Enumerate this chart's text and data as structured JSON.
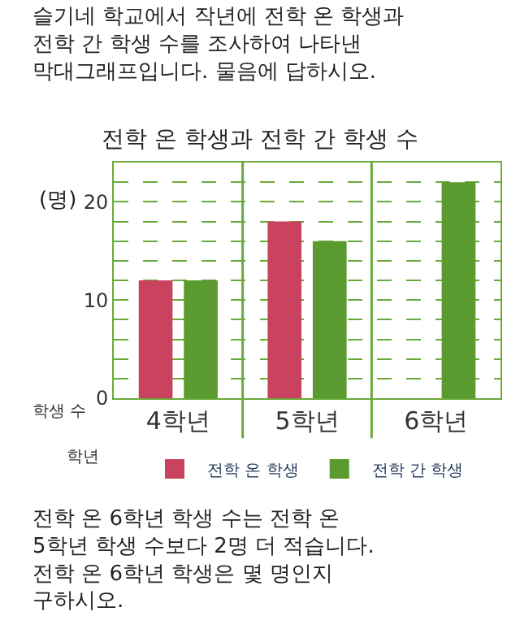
{
  "chart_data": {
    "type": "bar",
    "title": "전학 온 학생과 전학 간 학생 수",
    "xlabel": "학년",
    "ylabel": "학생 수",
    "categories": [
      "4학년",
      "5학년",
      "6학년"
    ],
    "series": [
      {
        "name": "전학 온 학생",
        "color": "#c9435f",
        "values": [
          12,
          18,
          null
        ]
      },
      {
        "name": "전학 간 학생",
        "color": "#5a9a2e",
        "values": [
          12,
          16,
          22
        ]
      }
    ],
    "ylim": [
      0,
      24
    ],
    "yticks": [
      0,
      {
        "value": 2,
        "label": null
      },
      {
        "value": 4,
        "label": null
      },
      {
        "value": 6,
        "label": null
      },
      {
        "value": 8,
        "label": null
      },
      10,
      {
        "value": 12,
        "label": null
      },
      {
        "value": 14,
        "label": null
      },
      {
        "value": 16,
        "label": null
      },
      {
        "value": 18,
        "label": null
      },
      20,
      {
        "value": 22,
        "label": null
      }
    ],
    "grid": "y",
    "legend": "bottom",
    "annotations": [
      "슬기네 학교에서 작년에 전학 온 학생과 전학 간 학생 수를 조사하여 나타낸 막대그래프입니다. 물음에 답하시오.",
      "(명)",
      "전학 온 6학년 학생 수는 전학 온 5학년 학생 수보다 2명 더 적습니다. 전학 온 6학년 학생은 몇 명인지 구하시오."
    ]
  }
}
